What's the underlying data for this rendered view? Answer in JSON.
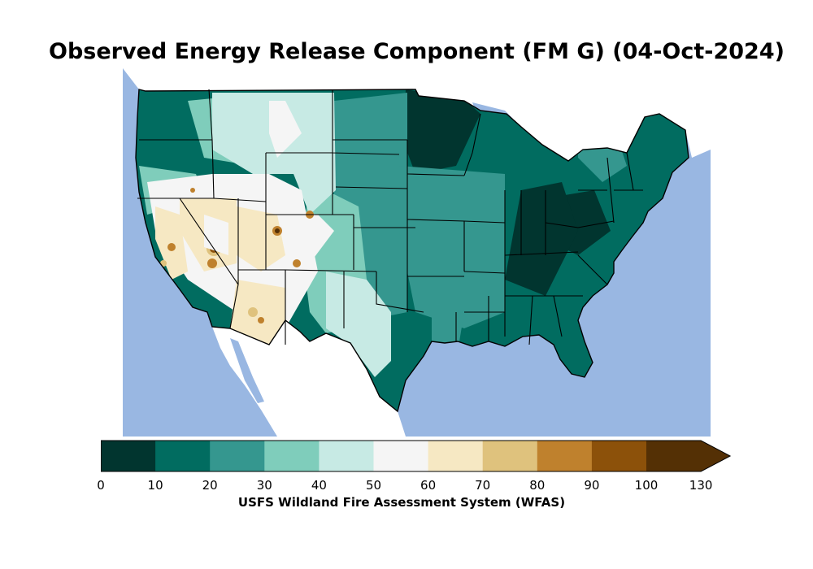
{
  "title": "Observed Energy Release Component (FM G) (04-Oct-2024)",
  "colorbar": {
    "label": "USFS Wildland Fire Assessment System (WFAS)",
    "ticks": [
      "0",
      "10",
      "20",
      "30",
      "40",
      "50",
      "60",
      "70",
      "80",
      "90",
      "100",
      "130"
    ],
    "colors": [
      "#01352f",
      "#016c60",
      "#35978f",
      "#7fcdbb",
      "#c7eae4",
      "#f5f5f5",
      "#f6e8c3",
      "#dfc27d",
      "#bf812d",
      "#8c510a",
      "#543005"
    ],
    "extend": "max"
  },
  "colors": {
    "ocean": "#99b7e2",
    "land_outside": "#ffffff",
    "border": "#000000"
  }
}
